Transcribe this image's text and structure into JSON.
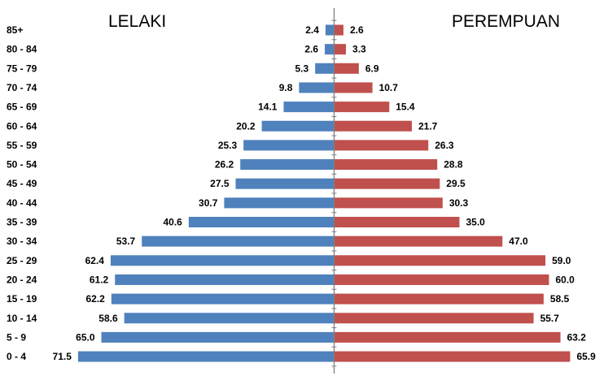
{
  "chart_data": {
    "type": "bar",
    "orientation": "horizontal",
    "layout": "population-pyramid",
    "categories": [
      "0 - 4",
      "5 - 9",
      "10 - 14",
      "15 - 19",
      "20 - 24",
      "25 - 29",
      "30 - 34",
      "35 - 39",
      "40 - 44",
      "45 - 49",
      "50 - 54",
      "55 - 59",
      "60 - 64",
      "65 - 69",
      "70 - 74",
      "75 - 79",
      "80 - 84",
      "85+"
    ],
    "series": [
      {
        "name": "LELAKI",
        "color": "#4f81bd",
        "values": [
          71.5,
          65.0,
          58.6,
          62.2,
          61.2,
          62.4,
          53.7,
          40.6,
          30.7,
          27.5,
          26.2,
          25.3,
          20.2,
          14.1,
          9.8,
          5.3,
          2.6,
          2.4
        ],
        "labels": [
          "71.5",
          "65.0",
          "58.6",
          "62.2",
          "61.2",
          "62.4",
          "53.7",
          "40.6",
          "30.7",
          "27.5",
          "26.2",
          "25.3",
          "20.2",
          "14.1",
          "9.8",
          "5.3",
          "2.6",
          "2.4"
        ]
      },
      {
        "name": "PEREMPUAN",
        "color": "#c0504d",
        "values": [
          65.9,
          63.2,
          55.7,
          58.5,
          60.0,
          59.0,
          47.0,
          35.0,
          30.3,
          29.5,
          28.8,
          26.3,
          21.7,
          15.4,
          10.7,
          6.9,
          3.3,
          2.6
        ],
        "labels": [
          "65.9",
          "63.2",
          "55.7",
          "58.5",
          "60.0",
          "59.0",
          "47.0",
          "35.0",
          "30.3",
          "29.5",
          "28.8",
          "26.3",
          "21.7",
          "15.4",
          "10.7",
          "6.9",
          "3.3",
          "2.6"
        ]
      }
    ],
    "xlim": [
      -72,
      72
    ],
    "grid": false,
    "legend": "none",
    "axis_color": "#7f7f7f"
  }
}
